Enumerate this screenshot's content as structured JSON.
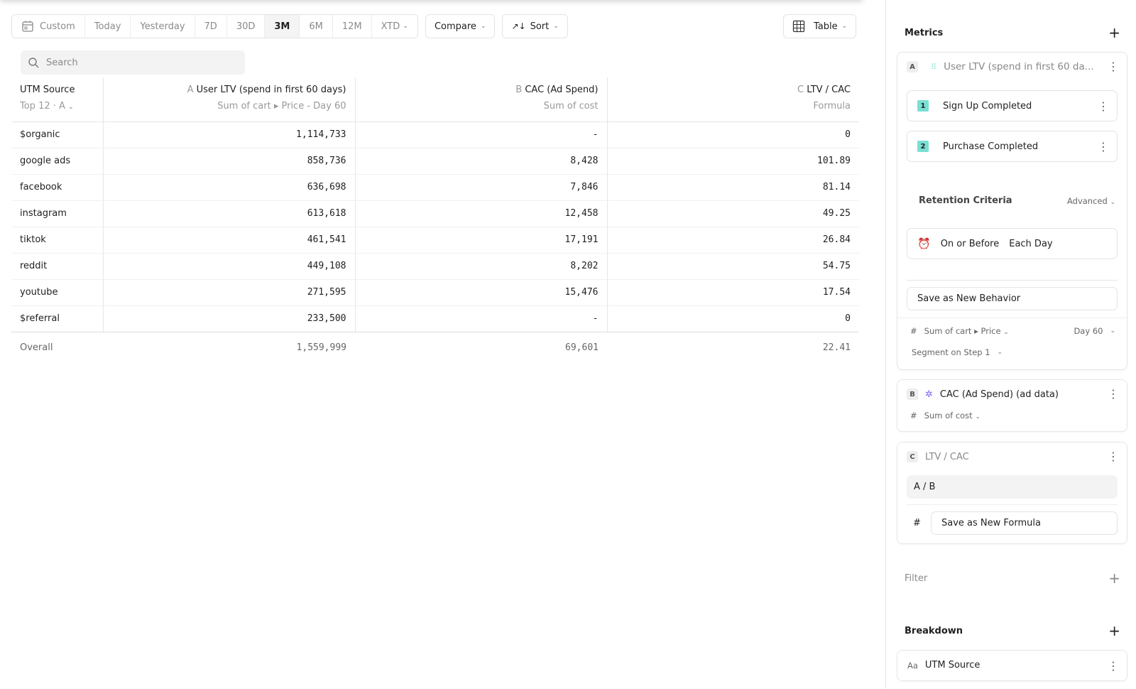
{
  "toolbar": {
    "date_ranges": [
      "Custom",
      "Today",
      "Yesterday",
      "7D",
      "30D",
      "3M",
      "6M",
      "12M",
      "XTD"
    ],
    "active_range": "3M",
    "compare": "Compare",
    "sort": "Sort",
    "view": "Table"
  },
  "search": {
    "placeholder": "Search",
    "value": ""
  },
  "table": {
    "columns": [
      {
        "title": "UTM Source",
        "subtitle": "Top 12 · A"
      },
      {
        "letter": "A",
        "title": "User LTV (spend in first 60 days)",
        "subtitle": "Sum of cart ▸ Price - Day 60"
      },
      {
        "letter": "B",
        "title": "CAC (Ad Spend)",
        "subtitle": "Sum of cost"
      },
      {
        "letter": "C",
        "title": "LTV / CAC",
        "subtitle": "Formula"
      }
    ],
    "rows": [
      [
        "$organic",
        "1,114,733",
        "-",
        "0"
      ],
      [
        "google ads",
        "858,736",
        "8,428",
        "101.89"
      ],
      [
        "facebook",
        "636,698",
        "7,846",
        "81.14"
      ],
      [
        "instagram",
        "613,618",
        "12,458",
        "49.25"
      ],
      [
        "tiktok",
        "461,541",
        "17,191",
        "26.84"
      ],
      [
        "reddit",
        "449,108",
        "8,202",
        "54.75"
      ],
      [
        "youtube",
        "271,595",
        "15,476",
        "17.54"
      ],
      [
        "$referral",
        "233,500",
        "-",
        "0"
      ]
    ],
    "overall": [
      "Overall",
      "1,559,999",
      "69,601",
      "22.41"
    ]
  },
  "panel": {
    "metrics_title": "Metrics",
    "metric_a": {
      "letter": "A",
      "title": "User LTV (spend in first 60 da...",
      "steps": [
        {
          "n": "1",
          "label": "Sign Up Completed"
        },
        {
          "n": "2",
          "label": "Purchase Completed"
        }
      ],
      "retention_title": "Retention Criteria",
      "retention_mode": "Advanced",
      "on_or_before": "On or Before",
      "each_day": "Each Day",
      "save": "Save as New Behavior",
      "measure": "Sum of cart ▸ Price",
      "day": "Day 60",
      "segment": "Segment on Step 1"
    },
    "metric_b": {
      "letter": "B",
      "title": "CAC (Ad Spend) (ad data)",
      "measure": "Sum of cost"
    },
    "metric_c": {
      "letter": "C",
      "title": "LTV / CAC",
      "formula": "A / B",
      "save": "Save as New Formula"
    },
    "filter_title": "Filter",
    "breakdown_title": "Breakdown",
    "breakdown_item": "UTM Source",
    "breakdown_prefix": "Aa",
    "hash": "#"
  },
  "colors": {
    "step_badge": "#7adfd3",
    "accent": "#7b61ff"
  }
}
